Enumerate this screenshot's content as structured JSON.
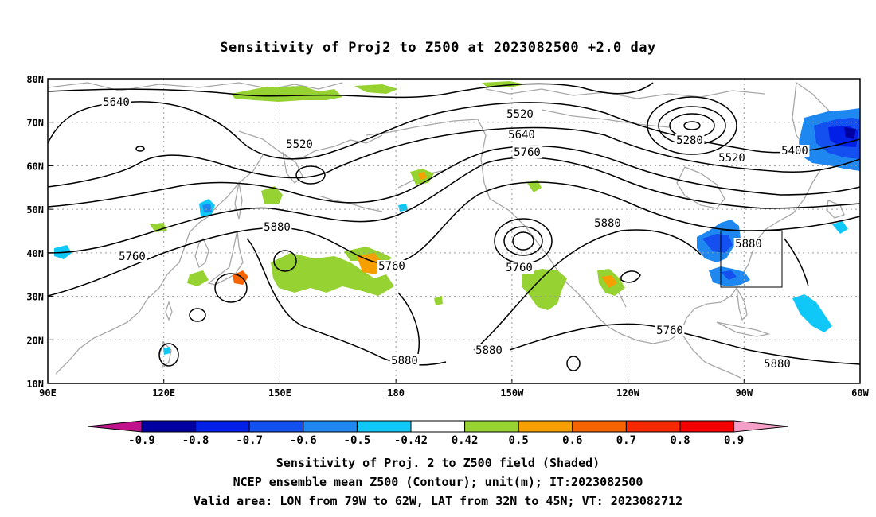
{
  "title": "Sensitivity of Proj2 to Z500 at 2023082500 +2.0 day",
  "map": {
    "lon_range": [
      90,
      300
    ],
    "lat_range": [
      10,
      80
    ],
    "lat_ticks": [
      "10N",
      "20N",
      "30N",
      "40N",
      "50N",
      "60N",
      "70N",
      "80N"
    ],
    "lon_ticks": [
      "90E",
      "120E",
      "150E",
      "180",
      "150W",
      "120W",
      "90W",
      "60W"
    ],
    "contour_labels": [
      "5640",
      "5520",
      "5520",
      "5640",
      "5760",
      "5280",
      "5520",
      "5400",
      "5880",
      "5880",
      "5760",
      "5760",
      "5760",
      "5880",
      "5760",
      "5880",
      "5880",
      "5880",
      "5880"
    ],
    "valid_box": {
      "lon": [
        "79W",
        "62W"
      ],
      "lat": [
        "32N",
        "45N"
      ]
    },
    "colors": {
      "land_outline": "#a8a8a8",
      "contour": "#000000",
      "grid": "#9a9a9a"
    }
  },
  "colorbar": {
    "labels": [
      "-0.9",
      "-0.8",
      "-0.7",
      "-0.6",
      "-0.5",
      "-0.42",
      "0.42",
      "0.5",
      "0.6",
      "0.7",
      "0.8",
      "0.9"
    ],
    "colors": [
      "#c0128a",
      "#0000a0",
      "#0020e8",
      "#1450f0",
      "#1e88f0",
      "#10c8f8",
      "#ffffff",
      "#96d232",
      "#f5a000",
      "#f56400",
      "#f52800",
      "#f50000",
      "#f5a0c8"
    ]
  },
  "caption": [
    "Sensitivity of Proj. 2 to Z500 field (Shaded)",
    "NCEP ensemble mean Z500 (Contour); unit(m); IT:2023082500",
    "Valid area: LON from 79W to 62W, LAT from 32N to 45N; VT: 2023082712"
  ]
}
